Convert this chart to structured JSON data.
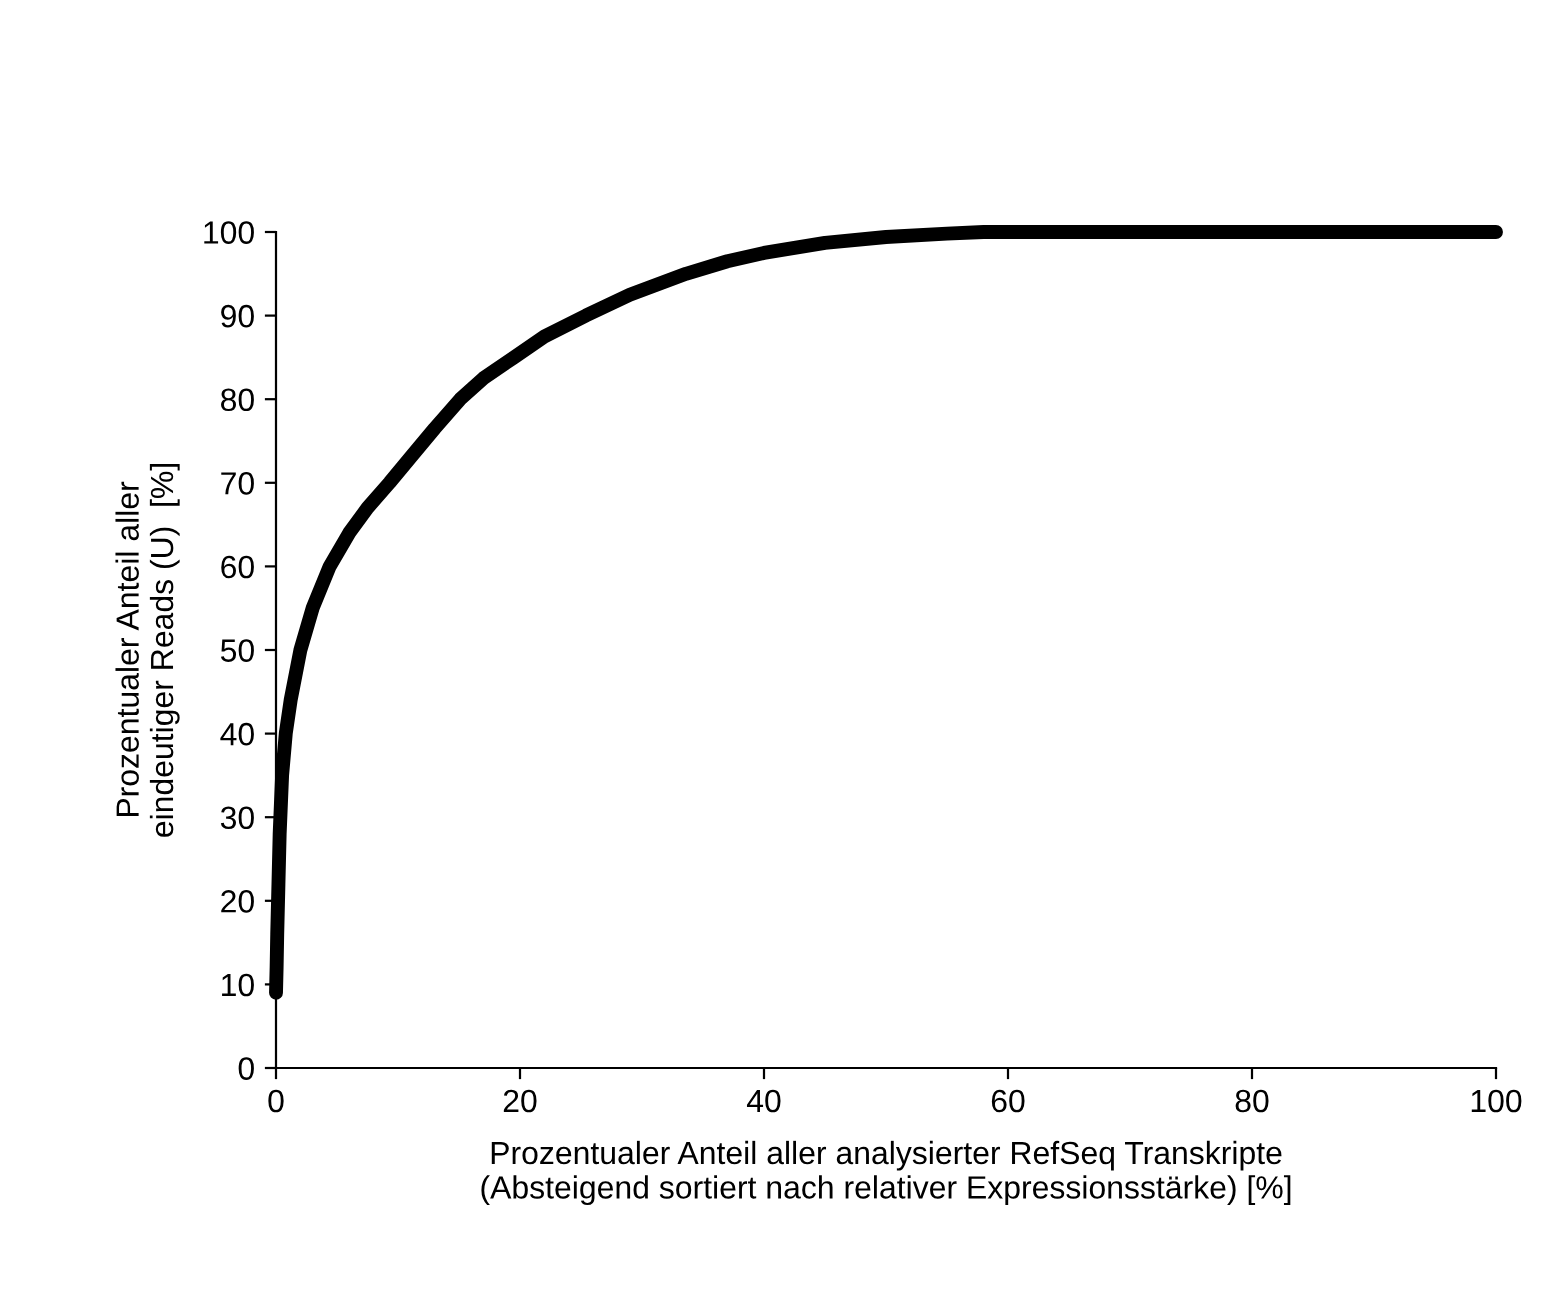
{
  "chart_data": {
    "type": "line",
    "xlabel": "Prozentualer Anteil aller analysierter RefSeq Transkripte\n(Absteigend sortiert nach relativer Expressionsstärke) [%]",
    "ylabel": "Prozentualer Anteil aller\neindeutiger Reads (U)  [%]",
    "series": [
      {
        "color": "#000000",
        "x": [
          0,
          0.05,
          0.1,
          0.2,
          0.3,
          0.5,
          0.8,
          1.2,
          2,
          3,
          4.4,
          6,
          7.5,
          9.3,
          11,
          13,
          15.1,
          17,
          19.5,
          22,
          25.4,
          29,
          33.6,
          37,
          40,
          45,
          50,
          55,
          58,
          65,
          75,
          85,
          95,
          100
        ],
        "values": [
          9,
          12,
          16,
          22,
          28,
          35,
          40,
          44,
          50,
          55,
          60,
          64,
          67,
          70,
          73,
          76.5,
          80,
          82.5,
          85,
          87.5,
          90,
          92.5,
          95,
          96.5,
          97.5,
          98.7,
          99.4,
          99.8,
          100,
          100,
          100,
          100,
          100,
          100
        ]
      }
    ],
    "xlim": [
      0,
      100
    ],
    "ylim": [
      0,
      100
    ],
    "xticks": [
      0,
      20,
      40,
      60,
      80,
      100
    ],
    "yticks": [
      0,
      10,
      20,
      30,
      40,
      50,
      60,
      70,
      80,
      90,
      100
    ],
    "grid": false,
    "legend": false,
    "marker": "none",
    "line_style": "solid"
  }
}
